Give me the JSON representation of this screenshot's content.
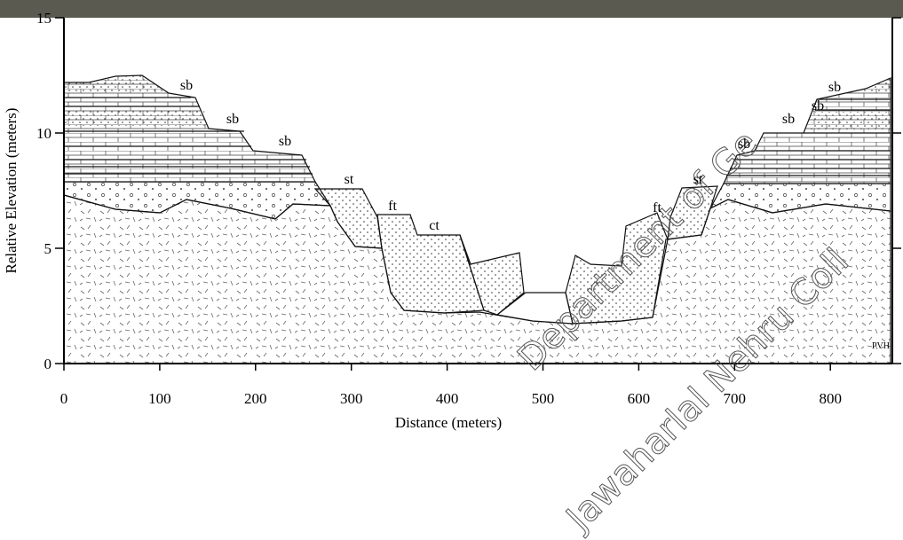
{
  "axes": {
    "x_label": "Distance (meters)",
    "y_label": "Relative Elevation (meters)",
    "x_ticks": [
      0,
      100,
      200,
      300,
      400,
      500,
      600,
      700,
      800
    ],
    "y_ticks": [
      0,
      5,
      10,
      15
    ]
  },
  "unit_labels": [
    "sb",
    "sb",
    "sb",
    "st",
    "ft",
    "ct",
    "ft",
    "st",
    "sb",
    "sb",
    "sb",
    "sb"
  ],
  "credit": "PVH",
  "watermark": [
    "Department of Ge",
    "Jawaharlal Nehru Coll"
  ]
}
